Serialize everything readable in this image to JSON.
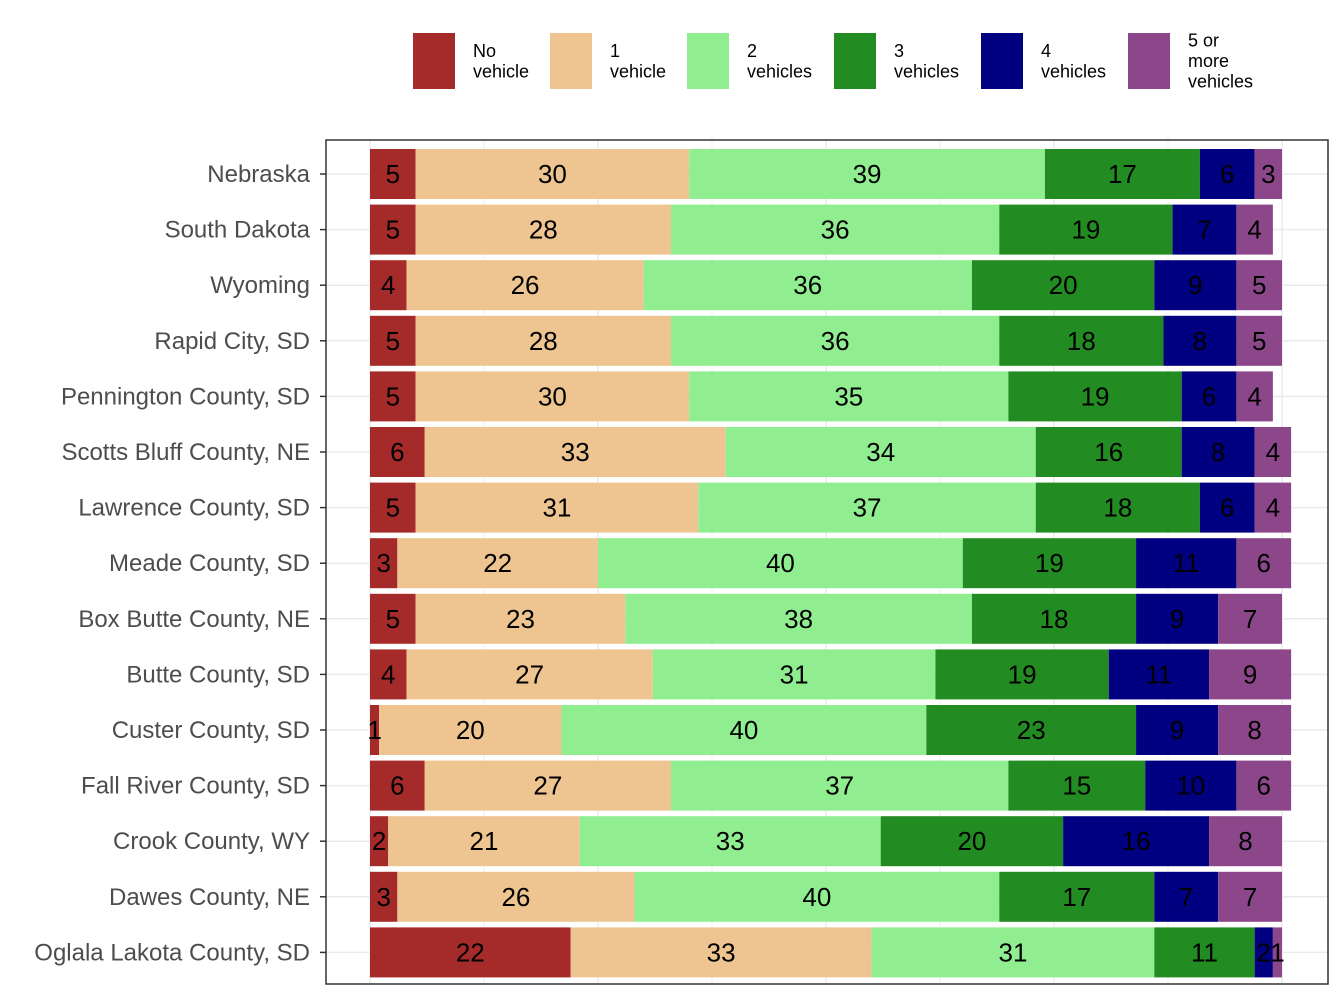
{
  "chart_data": {
    "type": "bar",
    "orientation": "horizontal",
    "stacked": true,
    "normalized": true,
    "title": "",
    "xlabel": "",
    "ylabel": "",
    "xlim": [
      0,
      100
    ],
    "grid": true,
    "legend_position": "top",
    "categories": [
      "Nebraska",
      "South Dakota",
      "Wyoming",
      "Rapid City, SD",
      "Pennington County, SD",
      "Scotts Bluff County, NE",
      "Lawrence County, SD",
      "Meade County, SD",
      "Box Butte County, NE",
      "Butte County, SD",
      "Custer County, SD",
      "Fall River County, SD",
      "Crook County, WY",
      "Dawes County, NE",
      "Oglala Lakota County, SD"
    ],
    "series": [
      {
        "name": "No vehicle",
        "legend_lines": [
          "No",
          "vehicle"
        ],
        "color": "#a52a2a",
        "values": [
          5,
          5,
          4,
          5,
          5,
          6,
          5,
          3,
          5,
          4,
          1,
          6,
          2,
          3,
          22
        ]
      },
      {
        "name": "1 vehicle",
        "legend_lines": [
          "1",
          "vehicle"
        ],
        "color": "#eec591",
        "values": [
          30,
          28,
          26,
          28,
          30,
          33,
          31,
          22,
          23,
          27,
          20,
          27,
          21,
          26,
          33
        ]
      },
      {
        "name": "2 vehicles",
        "legend_lines": [
          "2",
          "vehicles"
        ],
        "color": "#90ee90",
        "values": [
          39,
          36,
          36,
          36,
          35,
          34,
          37,
          40,
          38,
          31,
          40,
          37,
          33,
          40,
          31
        ]
      },
      {
        "name": "3 vehicles",
        "legend_lines": [
          "3",
          "vehicles"
        ],
        "color": "#228b22",
        "values": [
          17,
          19,
          20,
          18,
          19,
          16,
          18,
          19,
          18,
          19,
          23,
          15,
          20,
          17,
          11
        ]
      },
      {
        "name": "4 vehicles",
        "legend_lines": [
          "4",
          "vehicles"
        ],
        "color": "#000080",
        "values": [
          6,
          7,
          9,
          8,
          6,
          8,
          6,
          11,
          9,
          11,
          9,
          10,
          16,
          7,
          2
        ]
      },
      {
        "name": "5 or more vehicles",
        "legend_lines": [
          "5 or",
          "more",
          "vehicles"
        ],
        "color": "#8b4789",
        "values": [
          3,
          4,
          5,
          5,
          4,
          4,
          4,
          6,
          7,
          9,
          8,
          6,
          8,
          7,
          1
        ]
      }
    ]
  }
}
